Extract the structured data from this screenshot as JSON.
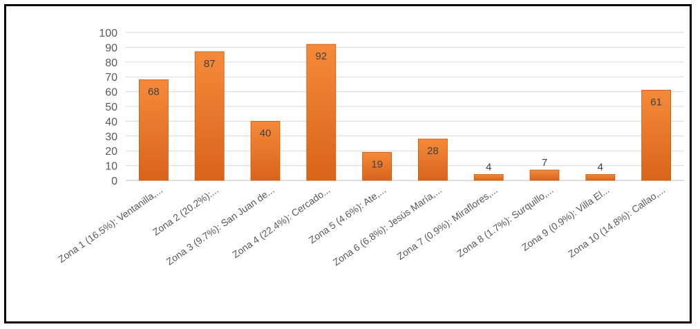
{
  "chart_data": {
    "type": "bar",
    "title": "",
    "xlabel": "",
    "ylabel": "",
    "ylim": [
      0,
      100
    ],
    "yticks": [
      0,
      10,
      20,
      30,
      40,
      50,
      60,
      70,
      80,
      90,
      100
    ],
    "grid": true,
    "legend": "none",
    "categories": [
      "Zona 1 (16.5%): Ventanilla,...",
      "Zona 2 (20.2%):...",
      "Zona 3 (9.7%): San Juan de...",
      "Zona 4 (22.4%): Cercado...",
      "Zona 5 (4.6%): Ate,...",
      "Zona 6 (6.8%): Jesús María,...",
      "Zona 7 (0.9%): Miraflores,...",
      "Zona 8 (1.7%): Surquillo,...",
      "Zona 9 (0.9%): Villa El...",
      "Zona 10 (14.8%): Callao,..."
    ],
    "values": [
      68,
      87,
      40,
      92,
      19,
      28,
      4,
      7,
      4,
      61
    ],
    "data_labels": [
      "68",
      "87",
      "40",
      "92",
      "19",
      "28",
      "4",
      "7",
      "4",
      "61"
    ],
    "colors": {
      "bar_top": "#f58a3a",
      "bar_bottom": "#d9641a",
      "bar_edge": "#c2570f"
    }
  }
}
